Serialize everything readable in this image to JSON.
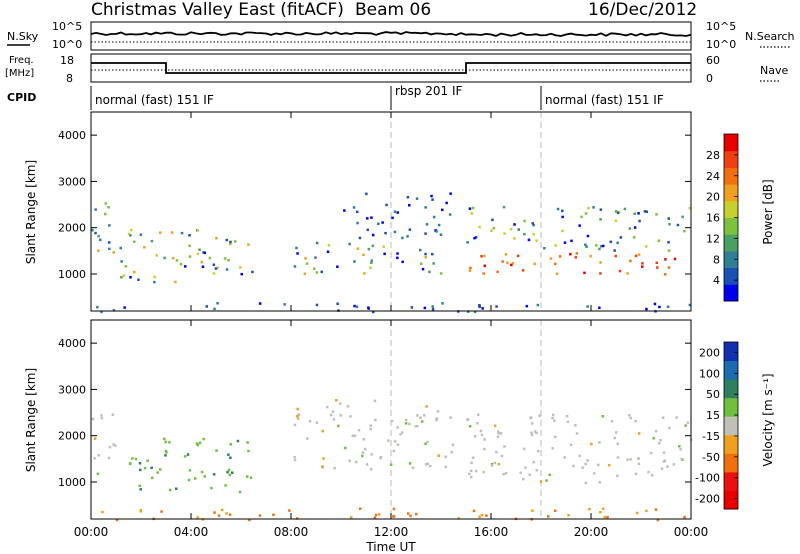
{
  "header": {
    "title": "Christmas Valley East (fitACF)",
    "beam": "Beam 06",
    "date": "16/Dec/2012"
  },
  "strip_nsky": {
    "left_label": "N.Sky",
    "left_ticks": [
      "10^5",
      "10^0"
    ],
    "right_ticks": [
      "10^5",
      "10^0"
    ],
    "right_label": "N.Search"
  },
  "strip_freq": {
    "left_label_1": "Freq.",
    "left_label_2": "[MHz]",
    "left_ticks": [
      "18",
      "8"
    ],
    "right_ticks": [
      "60",
      "0"
    ],
    "right_label": "Nave"
  },
  "cpid": {
    "label": "CPID",
    "segments": [
      "normal (fast) 151 IF",
      "rbsp 201 IF",
      "normal (fast) 151 IF"
    ]
  },
  "chart_data": [
    {
      "type": "heatmap",
      "name": "power",
      "ylabel": "Slant Range [km]",
      "yticks": [
        "1000",
        "2000",
        "3000",
        "4000"
      ],
      "ylim": [
        200,
        4500
      ],
      "xlim": [
        0,
        24
      ],
      "colorbar": {
        "label": "Power [dB]",
        "ticks": [
          "4",
          "8",
          "12",
          "16",
          "20",
          "24",
          "28"
        ],
        "colors": [
          "#0000ee",
          "#1c4fb4",
          "#2f7f95",
          "#4aa064",
          "#7cc23c",
          "#c8d030",
          "#f0a020",
          "#f07010",
          "#f04010",
          "#e80000"
        ]
      },
      "regions": [
        {
          "t0": 0.0,
          "t1": 1.0,
          "r0": 1000,
          "r1": 2600,
          "level": "high"
        },
        {
          "t0": 1.0,
          "t1": 6.5,
          "r0": 800,
          "r1": 2000,
          "level": "medium"
        },
        {
          "t0": 8.0,
          "t1": 14.5,
          "r0": 1000,
          "r1": 1700,
          "level": "medium"
        },
        {
          "t0": 10.0,
          "t1": 14.5,
          "r0": 1800,
          "r1": 2800,
          "level": "low"
        },
        {
          "t0": 15.0,
          "t1": 24.0,
          "r0": 1000,
          "r1": 2500,
          "level": "high"
        },
        {
          "t0": 0.0,
          "t1": 24.0,
          "r0": 200,
          "r1": 400,
          "level": "low"
        }
      ]
    },
    {
      "type": "heatmap",
      "name": "velocity",
      "ylabel": "Slant Range [km]",
      "yticks": [
        "1000",
        "2000",
        "3000",
        "4000"
      ],
      "ylim": [
        200,
        4500
      ],
      "xlim": [
        0,
        24
      ],
      "xticks": [
        "00:00",
        "04:00",
        "08:00",
        "12:00",
        "16:00",
        "20:00",
        "00:00"
      ],
      "xlabel": "Time UT",
      "colorbar": {
        "label": "Velocity [m s⁻¹]",
        "ticks": [
          "200",
          "100",
          "50",
          "15",
          "-15",
          "-50",
          "-100",
          "-200"
        ],
        "colors": [
          "#1030b0",
          "#1c6cb0",
          "#2f7f60",
          "#70c040",
          "#c0c0b8",
          "#f0a020",
          "#f07010",
          "#e81010",
          "#e80000"
        ]
      },
      "regions": [
        {
          "t0": 0.0,
          "t1": 1.0,
          "r0": 1200,
          "r1": 2600,
          "level": "gray"
        },
        {
          "t0": 1.5,
          "t1": 6.5,
          "r0": 800,
          "r1": 2000,
          "level": "green"
        },
        {
          "t0": 8.0,
          "t1": 14.5,
          "r0": 1300,
          "r1": 2800,
          "level": "gray"
        },
        {
          "t0": 15.0,
          "t1": 24.0,
          "r0": 1000,
          "r1": 2500,
          "level": "gray"
        },
        {
          "t0": 0.0,
          "t1": 24.0,
          "r0": 200,
          "r1": 450,
          "level": "orange"
        }
      ]
    }
  ]
}
